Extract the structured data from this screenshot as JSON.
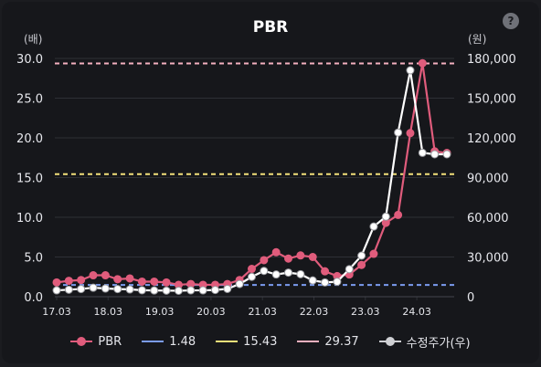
{
  "header": {
    "title": "PBR",
    "help_icon": "question-icon",
    "help_glyph": "?",
    "left_unit": "(배)",
    "right_unit": "(원)"
  },
  "legend": {
    "pbr": "PBR",
    "ref1": "1.48",
    "ref2": "15.43",
    "ref3": "29.37",
    "price": "수정주가(우)"
  },
  "chart_data": {
    "type": "line",
    "title": "PBR",
    "x_tick_labels": [
      "17.03",
      "18.03",
      "19.03",
      "20.03",
      "21.03",
      "22.03",
      "23.03",
      "24.03"
    ],
    "y_left": {
      "unit": "(배)",
      "range": [
        0,
        30
      ],
      "ticks": [
        "0.0",
        "5.0",
        "10.0",
        "15.0",
        "20.0",
        "25.0",
        "30.0"
      ]
    },
    "y_right": {
      "unit": "(원)",
      "range": [
        0,
        180000
      ],
      "ticks": [
        "0",
        "30,000",
        "60,000",
        "90,000",
        "120,000",
        "150,000",
        "180,000"
      ]
    },
    "reference_lines": [
      {
        "label": "1.48",
        "value": 1.48,
        "color": "#7b9cf0"
      },
      {
        "label": "15.43",
        "value": 15.43,
        "color": "#f3e07a"
      },
      {
        "label": "29.37",
        "value": 29.37,
        "color": "#f4b0bf"
      }
    ],
    "series": [
      {
        "name": "PBR",
        "axis": "left",
        "color": "#e05c7c",
        "values": [
          1.8,
          2.0,
          2.1,
          2.7,
          2.7,
          2.2,
          2.3,
          1.9,
          1.9,
          1.8,
          1.5,
          1.6,
          1.5,
          1.5,
          1.6,
          2.1,
          3.5,
          4.6,
          5.6,
          4.8,
          5.2,
          5.0,
          3.2,
          2.6,
          2.8,
          4.0,
          5.4,
          9.3,
          10.3,
          20.6,
          29.4,
          18.3,
          18.1
        ]
      },
      {
        "name": "수정주가(우)",
        "axis": "right",
        "color": "#ffffff",
        "values": [
          4800,
          5300,
          5800,
          6800,
          6200,
          5800,
          5500,
          4900,
          4700,
          4600,
          4500,
          4800,
          4800,
          5100,
          5900,
          9600,
          15000,
          19500,
          16800,
          18200,
          17000,
          12300,
          10800,
          11300,
          20800,
          31000,
          53000,
          60500,
          124000,
          171000,
          108700,
          107600,
          107600
        ]
      }
    ],
    "grid": true,
    "legend_position": "bottom"
  },
  "colors": {
    "background": "#16171b",
    "pbr": "#e05c7c",
    "price": "#ffffff",
    "grid": "#2e3036",
    "axis_text": "#e6e7ec"
  }
}
